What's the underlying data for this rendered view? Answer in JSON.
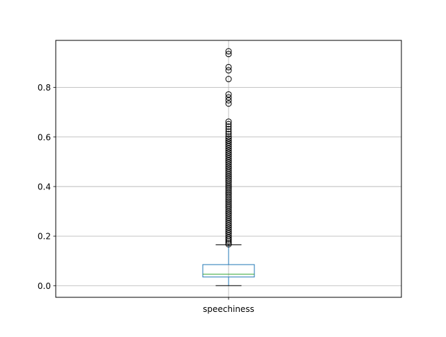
{
  "chart_data": {
    "type": "box",
    "title": "",
    "xlabel": "",
    "ylabel": "",
    "categories": [
      "speechiness"
    ],
    "ylim": [
      -0.047,
      0.99
    ],
    "yticks": [
      0.0,
      0.2,
      0.4,
      0.6,
      0.8
    ],
    "ytick_labels": [
      "0.0",
      "0.2",
      "0.4",
      "0.6",
      "0.8"
    ],
    "grid": true,
    "series": [
      {
        "category": "speechiness",
        "whisker_low": 0.0,
        "q1": 0.035,
        "median": 0.046,
        "q3": 0.085,
        "whisker_high": 0.165,
        "outliers": [
          0.167,
          0.173,
          0.18,
          0.187,
          0.194,
          0.202,
          0.21,
          0.218,
          0.226,
          0.234,
          0.242,
          0.25,
          0.258,
          0.266,
          0.274,
          0.282,
          0.29,
          0.298,
          0.306,
          0.314,
          0.322,
          0.33,
          0.338,
          0.346,
          0.354,
          0.362,
          0.37,
          0.378,
          0.386,
          0.394,
          0.402,
          0.41,
          0.418,
          0.426,
          0.434,
          0.442,
          0.45,
          0.458,
          0.466,
          0.474,
          0.482,
          0.49,
          0.498,
          0.506,
          0.514,
          0.522,
          0.53,
          0.538,
          0.546,
          0.554,
          0.562,
          0.57,
          0.578,
          0.586,
          0.594,
          0.602,
          0.612,
          0.622,
          0.632,
          0.642,
          0.652,
          0.662,
          0.735,
          0.748,
          0.76,
          0.772,
          0.834,
          0.869,
          0.882,
          0.935,
          0.946
        ]
      }
    ],
    "colors": {
      "box": "#1f77b4",
      "median": "#2ca02c",
      "whisker": "#000000",
      "flier": "#000000",
      "grid": "#b0b0b0"
    }
  }
}
